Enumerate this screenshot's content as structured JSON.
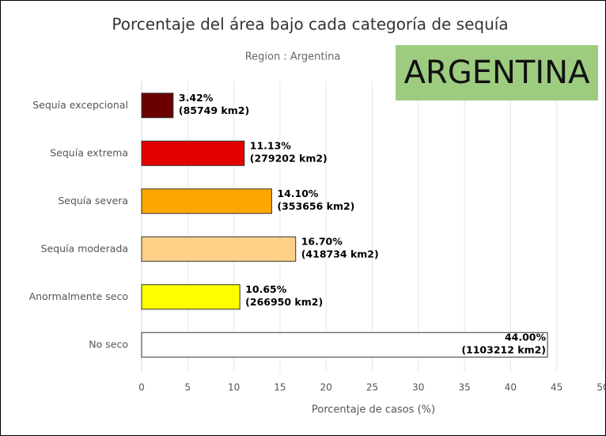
{
  "chart_data": {
    "type": "bar",
    "orientation": "horizontal",
    "title": "Porcentaje del área bajo cada categoría de sequía",
    "subtitle": "Region : Argentina",
    "annotation": "ARGENTINA",
    "xlabel": "Porcentaje de casos (%)",
    "categories": [
      "Sequía excepcional",
      "Sequía extrema",
      "Sequía severa",
      "Sequía moderada",
      "Anormalmente seco",
      "No seco"
    ],
    "values": [
      3.42,
      11.13,
      14.1,
      16.7,
      10.65,
      44.0
    ],
    "value_labels": [
      "3.42%",
      "11.13%",
      "14.10%",
      "16.70%",
      "10.65%",
      "44.00%"
    ],
    "area_labels": [
      "(85749 km2)",
      "(279202 km2)",
      "(353656 km2)",
      "(418734 km2)",
      "(266950 km2)",
      "(1103212 km2)"
    ],
    "colors": [
      "#6b0000",
      "#e30000",
      "#ffa600",
      "#fdd187",
      "#ffff00",
      "#ffffff"
    ],
    "xlim": [
      0,
      50
    ],
    "xticks": [
      0,
      5,
      10,
      15,
      20,
      25,
      30,
      35,
      40,
      45,
      50
    ],
    "grid": true
  }
}
